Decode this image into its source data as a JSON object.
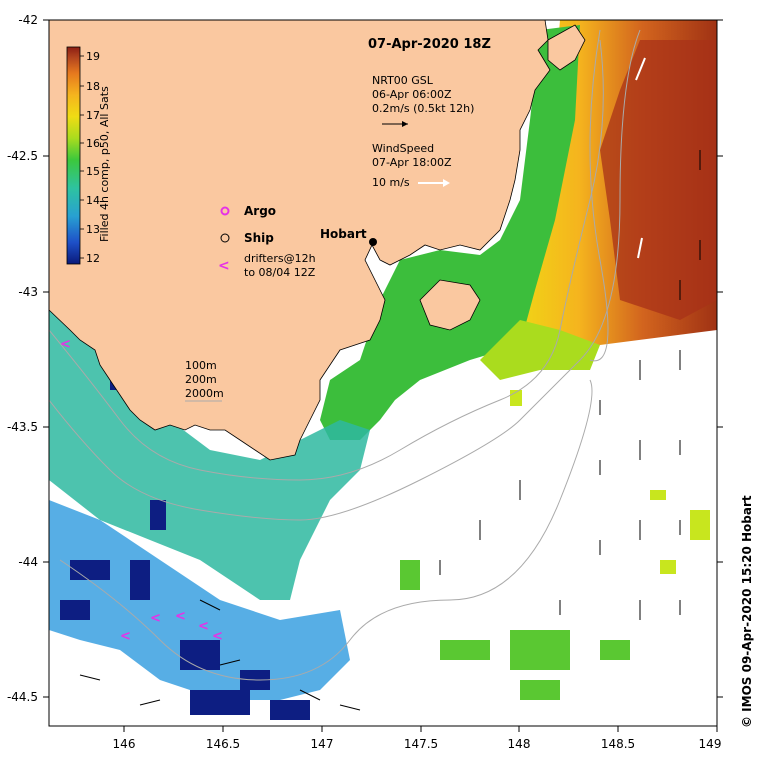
{
  "title": "07-Apr-2020 18Z",
  "colorbar": {
    "label": "Filled 4h comp, p50, All Sats",
    "ticks": [
      "19",
      "18",
      "17",
      "16",
      "15",
      "14",
      "13",
      "12"
    ],
    "stops": [
      "#0a1a7a",
      "#1e50c8",
      "#28a0d2",
      "#2ec3a0",
      "#3cc83c",
      "#aadc1e",
      "#f0dc14",
      "#f5b41e",
      "#e6781e",
      "#b4461e",
      "#8c1e14"
    ]
  },
  "axes": {
    "x_ticks": [
      "146",
      "146.5",
      "147",
      "147.5",
      "148",
      "148.5",
      "149"
    ],
    "y_ticks": [
      "-42",
      "-42.5",
      "-43",
      "-43.5",
      "-44",
      "-44.5"
    ]
  },
  "legend": {
    "current_source": "NRT00 GSL",
    "current_time": "06-Apr 06:00Z",
    "current_scale": "0.2m/s (0.5kt 12h)",
    "wind_label": "WindSpeed",
    "wind_time": "07-Apr 18:00Z",
    "wind_scale": "10 m/s",
    "argo_label": "Argo",
    "ship_label": "Ship",
    "drifter_label_1": "drifters@12h",
    "drifter_label_2": "to 08/04 12Z",
    "drifter_symbol": "<"
  },
  "isobaths": [
    "100m",
    "200m",
    "2000m"
  ],
  "places": {
    "hobart": "Hobart"
  },
  "credit": "© IMOS 09-Apr-2020 15:20 Hobart",
  "colors": {
    "land": "#fac8a0",
    "ocean": "#ffffff",
    "drifter": "#e632e6",
    "isobath": "#aaaaaa"
  }
}
